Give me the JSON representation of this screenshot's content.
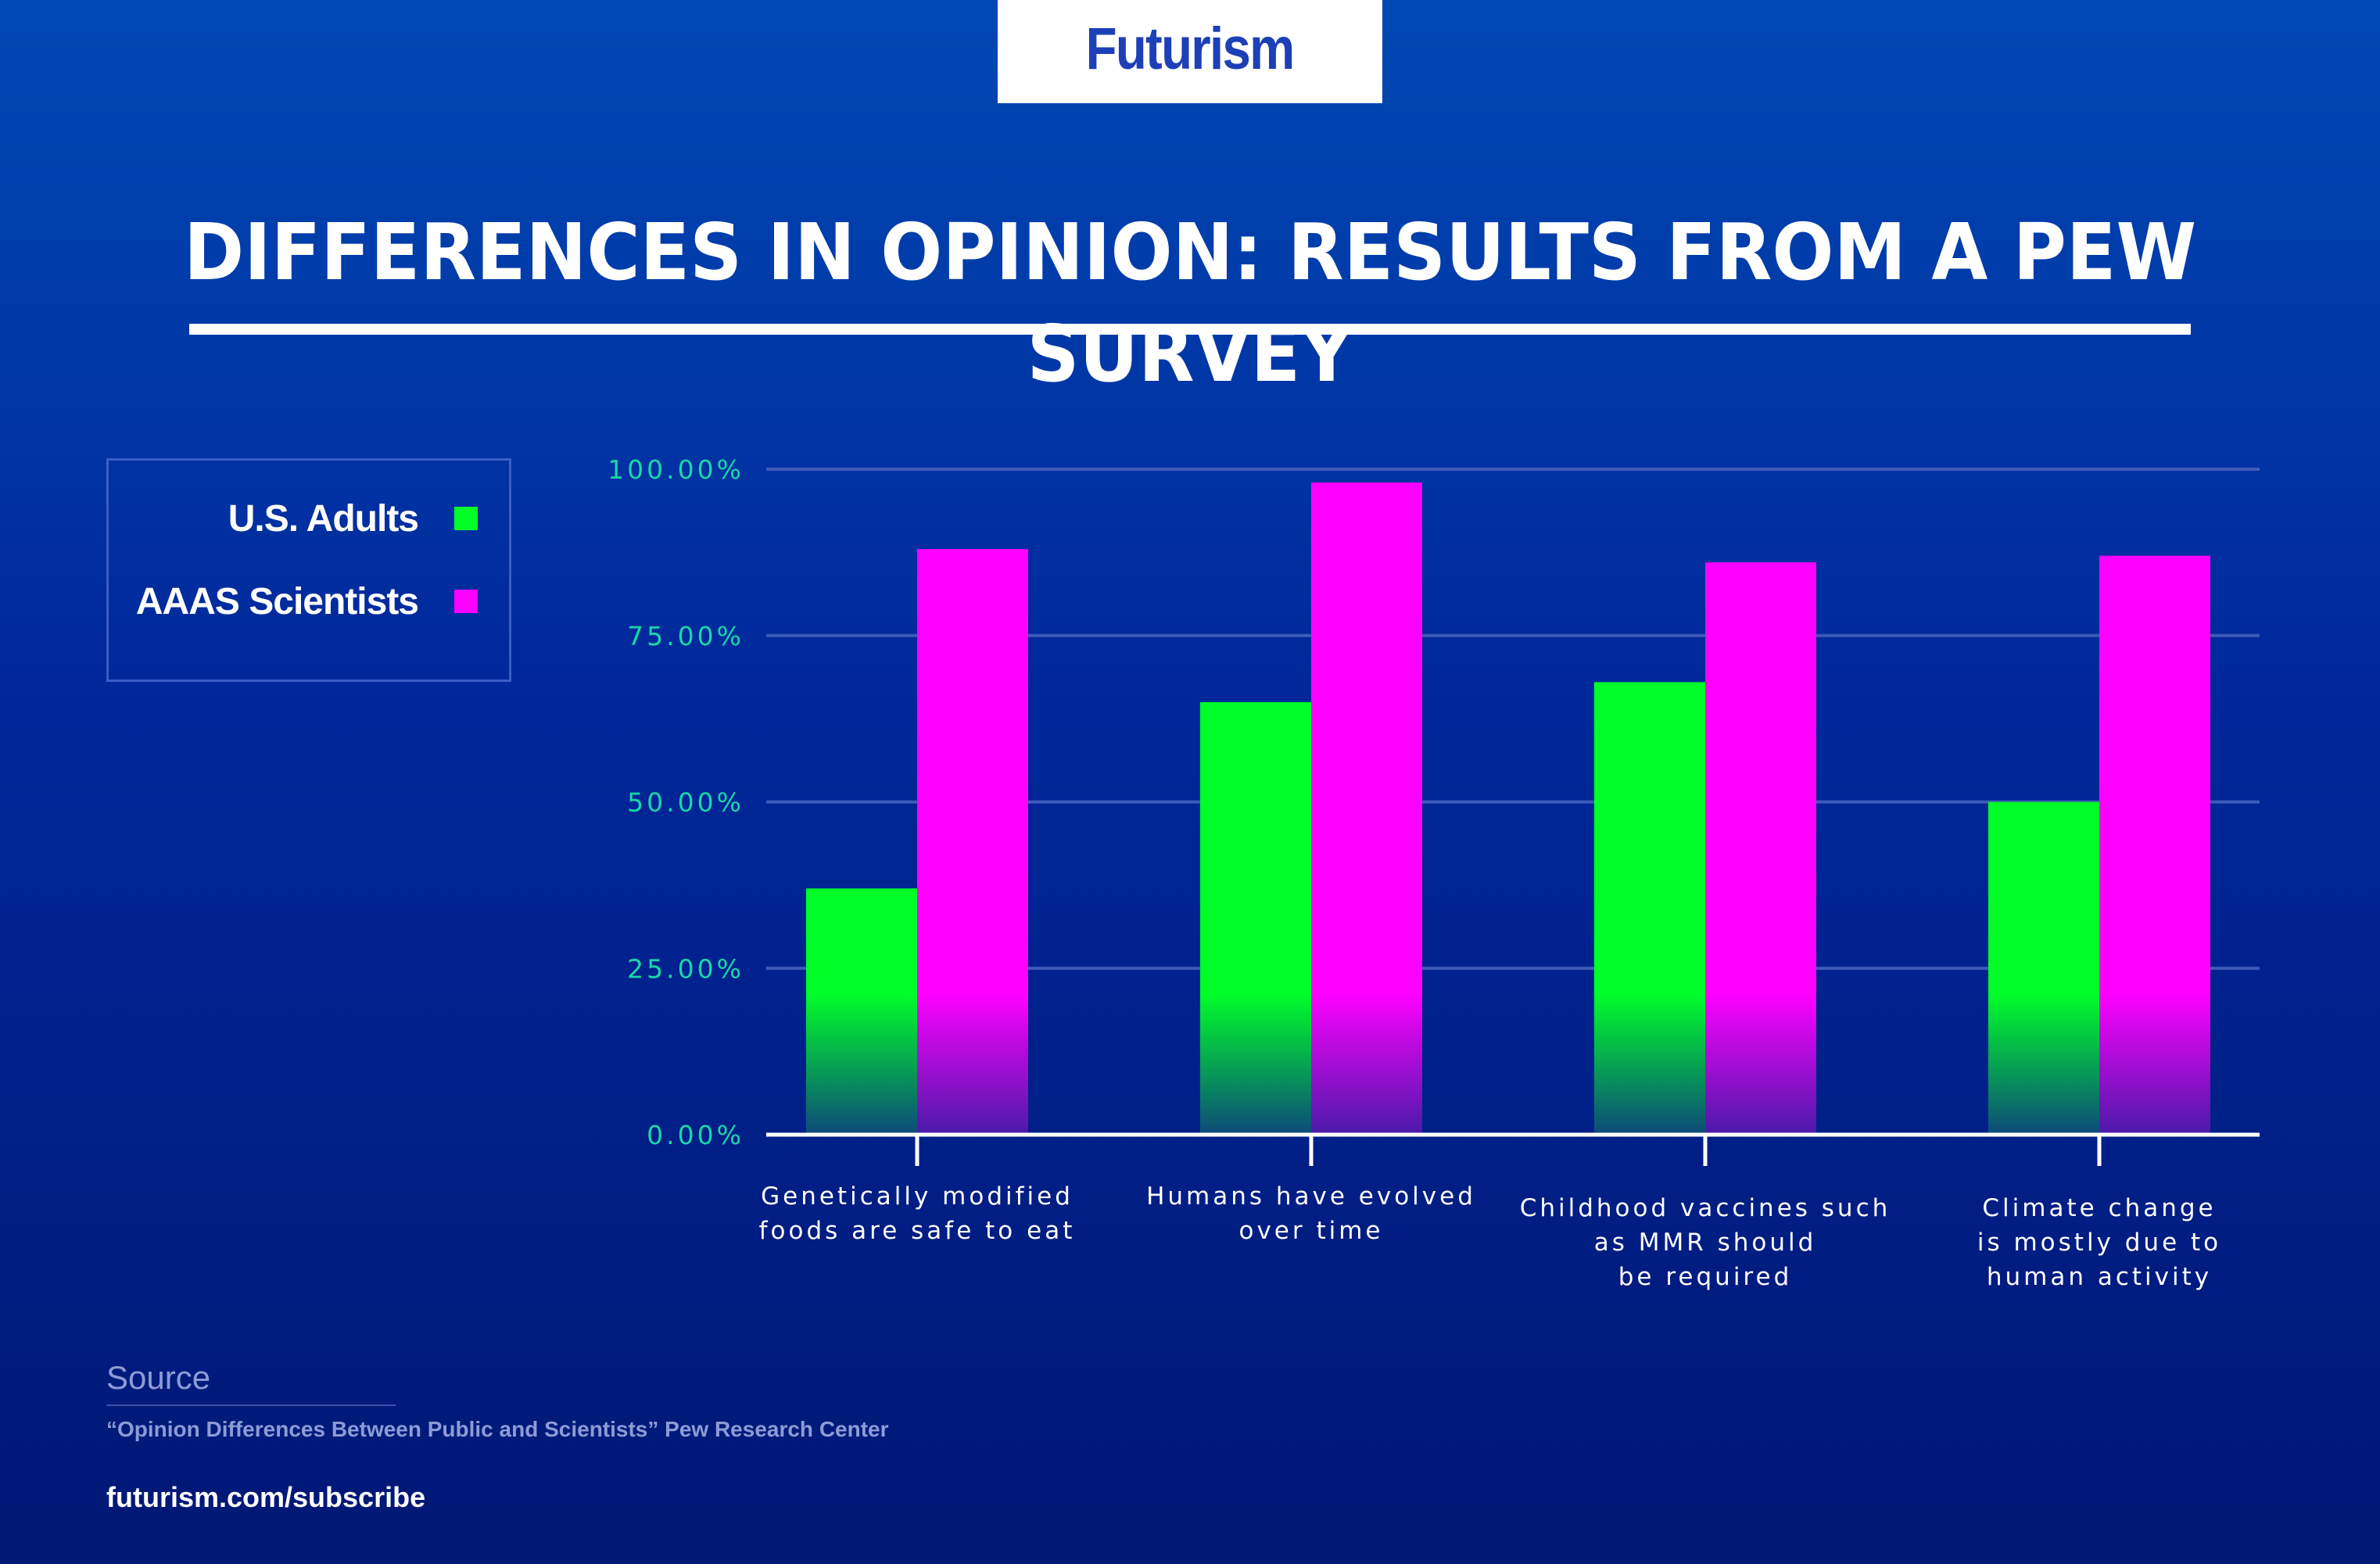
{
  "brand": {
    "logo_text": "Futurism"
  },
  "title": "DIFFERENCES IN OPINION: RESULTS FROM A PEW SURVEY",
  "colors": {
    "us_adults": "#00ff29",
    "aaas_scientists": "#ff00ff",
    "axis_labels": "#19d7a8",
    "gridline": "#3d5bb8",
    "background_top": "#0049b4",
    "background_bottom": "#001774"
  },
  "legend": {
    "items": [
      {
        "label": "U.S. Adults",
        "color": "#00ff29"
      },
      {
        "label": "AAAS Scientists",
        "color": "#ff00ff"
      }
    ]
  },
  "chart_data": {
    "type": "bar",
    "title": "DIFFERENCES IN OPINION: RESULTS FROM A PEW SURVEY",
    "xlabel": "",
    "ylabel": "",
    "ylim": [
      0,
      100
    ],
    "yticks": [
      "0.00%",
      "25.00%",
      "50.00%",
      "75.00%",
      "100.00%"
    ],
    "categories": [
      [
        "Genetically modified",
        "foods are safe to eat"
      ],
      [
        "Humans have evolved",
        "over time"
      ],
      [
        "Childhood vaccines such",
        "as MMR should",
        "be required"
      ],
      [
        "Climate change",
        "is mostly due to",
        "human activity"
      ]
    ],
    "series": [
      {
        "name": "U.S. Adults",
        "color": "#00ff29",
        "values": [
          37,
          65,
          68,
          50
        ]
      },
      {
        "name": "AAAS Scientists",
        "color": "#ff00ff",
        "values": [
          88,
          98,
          86,
          87
        ]
      }
    ],
    "grid": true,
    "legend_position": "left"
  },
  "source": {
    "heading": "Source",
    "citation": "“Opinion Differences Between Public and Scientists” Pew Research Center"
  },
  "footer": {
    "link_text": "futurism.com/subscribe"
  }
}
